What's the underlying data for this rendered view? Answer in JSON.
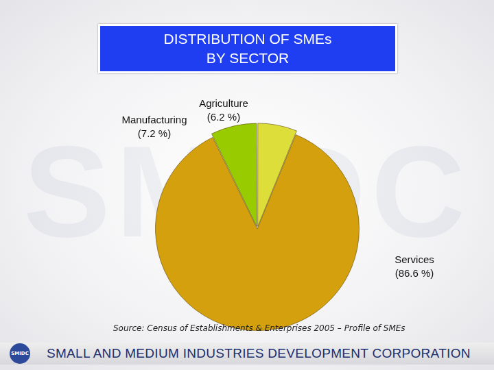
{
  "chart_data": {
    "type": "pie",
    "title": "DISTRIBUTION OF SMEs\nBY SECTOR",
    "categories": [
      "Manufacturing",
      "Agriculture",
      "Services"
    ],
    "values": [
      7.2,
      6.2,
      86.6
    ],
    "value_labels": [
      "(7.2 %)",
      "(6.2 %)",
      "(86.6 %)"
    ],
    "colors": [
      "#99cc00",
      "#dede3a",
      "#d4a00e"
    ],
    "data_labels": true,
    "legend": false,
    "source": "Source: Census of Establishments & Enterprises 2005 – Profile of SMEs",
    "footer": "SMALL AND MEDIUM INDUSTRIES DEVELOPMENT CORPORATION",
    "logo": "SMIDC"
  }
}
